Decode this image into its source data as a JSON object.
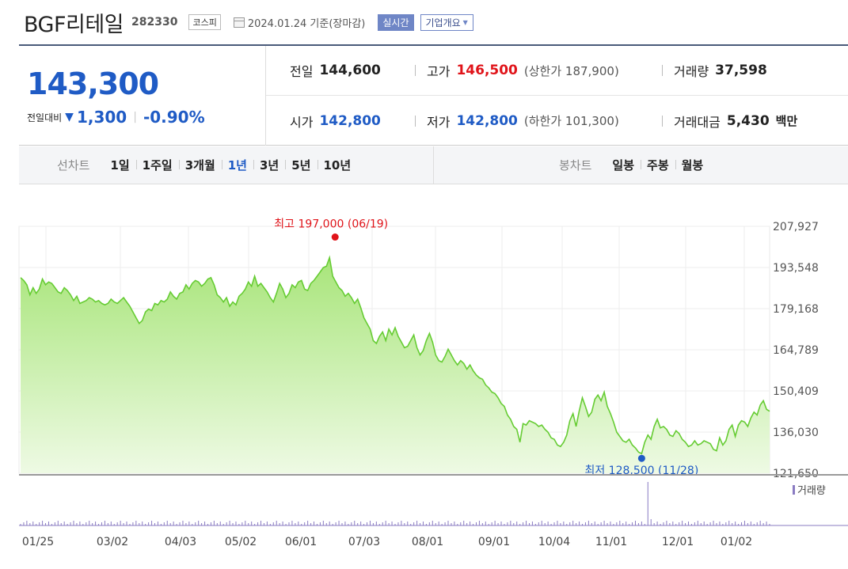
{
  "header": {
    "company": "BGF리테일",
    "code": "282330",
    "market": "코스피",
    "date": "2024.01.24 기준(장마감)",
    "realtime_label": "실시간",
    "overview_label": "기업개요"
  },
  "price": {
    "current": "143,300",
    "change_label": "전일대비",
    "change": "1,300",
    "change_pct": "-0.90%"
  },
  "stats": {
    "prev_close_label": "전일",
    "prev_close": "144,600",
    "high_label": "고가",
    "high": "146,500",
    "upper_limit": "(상한가 187,900)",
    "volume_label": "거래량",
    "volume": "37,598",
    "open_label": "시가",
    "open": "142,800",
    "low_label": "저가",
    "low": "142,800",
    "lower_limit": "(하한가 101,300)",
    "value_label": "거래대금",
    "value": "5,430",
    "value_unit": "백만"
  },
  "periods": {
    "line_label": "선차트",
    "items": [
      "1일",
      "1주일",
      "3개월",
      "1년",
      "3년",
      "5년",
      "10년"
    ],
    "selected": "1년",
    "candle_label": "봉차트",
    "candle_items": [
      "일봉",
      "주봉",
      "월봉"
    ]
  },
  "colors": {
    "accent_blue": "#1f5bc5",
    "up_red": "#e0141a",
    "line_green": "#66cc33",
    "fill_green": "#b8ec8f"
  },
  "chart_data": {
    "type": "area",
    "x_ticks": [
      "01/25",
      "03/02",
      "04/03",
      "05/02",
      "06/01",
      "07/03",
      "08/01",
      "09/01",
      "10/04",
      "11/01",
      "12/01",
      "01/02"
    ],
    "y_ticks": [
      "207,927",
      "193,548",
      "179,168",
      "164,789",
      "150,409",
      "136,030",
      "121,650"
    ],
    "ylim": [
      121650,
      207927
    ],
    "high_annotation": "최고 197,000 (06/19)",
    "low_annotation": "최저 128,500 (11/28)",
    "high": 197000,
    "low": 128500,
    "volume_label": "거래량",
    "values": [
      190000,
      189000,
      187500,
      184000,
      186500,
      184500,
      186000,
      189500,
      187500,
      188500,
      188000,
      186500,
      185000,
      184500,
      186500,
      185500,
      184000,
      182000,
      183500,
      181000,
      181500,
      182000,
      183000,
      182500,
      181500,
      182000,
      181000,
      180500,
      181000,
      182500,
      181500,
      181000,
      182000,
      183000,
      181500,
      180000,
      178000,
      176000,
      174000,
      175000,
      178000,
      179000,
      178500,
      181000,
      180500,
      182000,
      181500,
      182500,
      185000,
      183500,
      182500,
      184500,
      185000,
      187500,
      186000,
      188000,
      189000,
      188500,
      187000,
      188000,
      189500,
      190000,
      187500,
      184000,
      183000,
      181500,
      183000,
      180000,
      181500,
      180500,
      183500,
      184500,
      186000,
      188500,
      187000,
      190500,
      187000,
      188000,
      186500,
      185000,
      183000,
      181500,
      184500,
      188000,
      186000,
      183000,
      184500,
      187500,
      186500,
      188500,
      189000,
      186000,
      185500,
      188000,
      189000,
      190500,
      192000,
      193500,
      194000,
      197000,
      190500,
      188500,
      186500,
      185500,
      183500,
      184500,
      183000,
      181000,
      182500,
      179500,
      176000,
      174000,
      172000,
      168000,
      167000,
      169500,
      171000,
      168000,
      172000,
      170000,
      172500,
      169500,
      167500,
      165500,
      166000,
      168000,
      170000,
      165500,
      163000,
      164500,
      168000,
      170500,
      167500,
      163000,
      161000,
      160500,
      162500,
      165000,
      163000,
      161000,
      159500,
      161000,
      160000,
      158000,
      159500,
      157500,
      156000,
      155000,
      154500,
      152500,
      151500,
      150000,
      149500,
      148000,
      146000,
      145000,
      142000,
      140500,
      138000,
      137000,
      132500,
      139000,
      138500,
      140000,
      139500,
      139000,
      138000,
      138500,
      137000,
      136000,
      134000,
      133500,
      131500,
      131000,
      132500,
      135000,
      140000,
      142500,
      138000,
      143500,
      148000,
      145000,
      141500,
      143000,
      147500,
      149000,
      147000,
      150000,
      145000,
      142500,
      139500,
      136000,
      134500,
      133000,
      132500,
      133500,
      131500,
      130500,
      129000,
      128500,
      132500,
      135000,
      133500,
      138000,
      140500,
      137500,
      138000,
      137000,
      135000,
      134500,
      136500,
      135500,
      133500,
      132500,
      131000,
      131500,
      133000,
      131500,
      132000,
      133000,
      132500,
      132000,
      130000,
      129500,
      134000,
      131500,
      133000,
      137000,
      138500,
      134500,
      138500,
      140000,
      139500,
      138000,
      141000,
      143000,
      142000,
      145500,
      147000,
      144000,
      143300
    ]
  }
}
